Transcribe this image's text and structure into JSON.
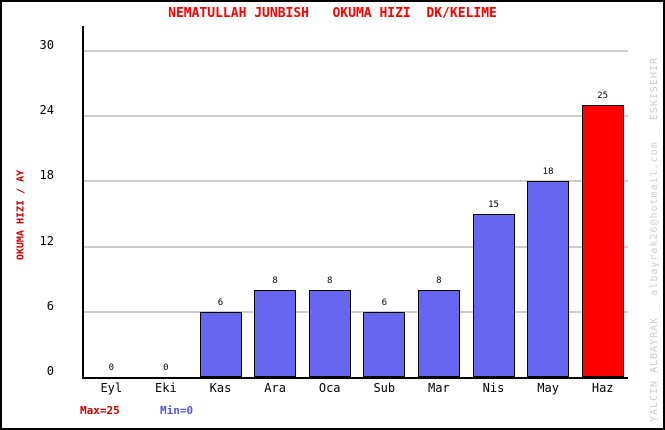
{
  "chart_data": {
    "type": "bar",
    "title": "NEMATULLAH JUNBISH   OKUMA HIZI  DK/KELIME",
    "ylabel": "OKUMA HIZI / AY",
    "xlabel": "",
    "categories": [
      "Eyl",
      "Eki",
      "Kas",
      "Ara",
      "Oca",
      "Sub",
      "Mar",
      "Nis",
      "May",
      "Haz"
    ],
    "values": [
      0,
      0,
      6,
      8,
      8,
      6,
      8,
      15,
      18,
      25
    ],
    "bar_colors": [
      "#6666F0",
      "#6666F0",
      "#6666F0",
      "#6666F0",
      "#6666F0",
      "#6666F0",
      "#6666F0",
      "#6666F0",
      "#6666F0",
      "#FF0000"
    ],
    "ylim": [
      0,
      30
    ],
    "yticks": [
      0,
      6,
      12,
      18,
      24,
      30
    ],
    "grid": true,
    "legend_position": "none",
    "max_label": "Max=25",
    "min_label": "Min=0",
    "watermark": "YALCIN ALBAYRAK _ albayrak26@hotmail.com _ ESKISEHIR",
    "colors": {
      "title": "#FF0000",
      "ylabel": "#CC0000",
      "grid": "#CCCCCC",
      "axis": "#000000",
      "max_label": "#CC0000",
      "min_label": "#5555DD",
      "watermark": "#CCCCCC",
      "background": "#FFFFFF"
    }
  }
}
